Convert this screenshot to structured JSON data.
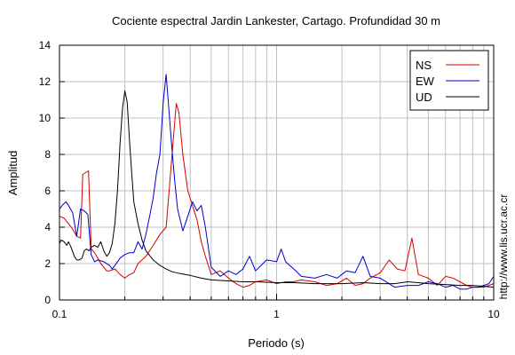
{
  "chart_data": {
    "type": "line",
    "title": "Cociente espectral Jardin Lankester, Cartago. Profundidad 30 m",
    "xlabel": "Periodo (s)",
    "ylabel": "Amplitud",
    "xscale": "log",
    "xlim": [
      0.1,
      10
    ],
    "ylim": [
      0,
      14
    ],
    "x_ticks": [
      0.1,
      1,
      10
    ],
    "x_tick_labels": [
      "0.1",
      "1",
      "10"
    ],
    "y_ticks": [
      0,
      2,
      4,
      6,
      8,
      10,
      12,
      14
    ],
    "y_tick_labels": [
      "0",
      "2",
      "4",
      "6",
      "8",
      "10",
      "12",
      "14"
    ],
    "grid": true,
    "legend_position": "top-right",
    "side_text": "http://www.lis.ucr.ac.cr",
    "series": [
      {
        "name": "NS",
        "color": "#d40000",
        "points": [
          [
            0.1,
            4.6
          ],
          [
            0.105,
            4.5
          ],
          [
            0.11,
            4.2
          ],
          [
            0.115,
            3.9
          ],
          [
            0.12,
            3.5
          ],
          [
            0.125,
            3.4
          ],
          [
            0.128,
            6.9
          ],
          [
            0.132,
            7.0
          ],
          [
            0.136,
            7.1
          ],
          [
            0.14,
            2.8
          ],
          [
            0.145,
            2.6
          ],
          [
            0.15,
            2.3
          ],
          [
            0.155,
            2.0
          ],
          [
            0.16,
            1.8
          ],
          [
            0.165,
            1.6
          ],
          [
            0.17,
            1.6
          ],
          [
            0.18,
            1.7
          ],
          [
            0.19,
            1.4
          ],
          [
            0.2,
            1.2
          ],
          [
            0.21,
            1.4
          ],
          [
            0.22,
            1.5
          ],
          [
            0.23,
            2.0
          ],
          [
            0.25,
            2.4
          ],
          [
            0.27,
            3.0
          ],
          [
            0.29,
            3.6
          ],
          [
            0.31,
            4.0
          ],
          [
            0.33,
            8.0
          ],
          [
            0.345,
            10.8
          ],
          [
            0.355,
            10.3
          ],
          [
            0.37,
            8.0
          ],
          [
            0.39,
            6.0
          ],
          [
            0.41,
            5.2
          ],
          [
            0.43,
            4.4
          ],
          [
            0.45,
            3.2
          ],
          [
            0.47,
            2.4
          ],
          [
            0.5,
            1.4
          ],
          [
            0.55,
            1.6
          ],
          [
            0.6,
            1.2
          ],
          [
            0.65,
            0.9
          ],
          [
            0.7,
            0.7
          ],
          [
            0.75,
            0.8
          ],
          [
            0.8,
            1.0
          ],
          [
            0.9,
            1.1
          ],
          [
            1.0,
            0.9
          ],
          [
            1.1,
            1.0
          ],
          [
            1.2,
            1.0
          ],
          [
            1.3,
            1.1
          ],
          [
            1.5,
            1.0
          ],
          [
            1.7,
            0.8
          ],
          [
            1.9,
            0.9
          ],
          [
            2.1,
            1.2
          ],
          [
            2.3,
            0.8
          ],
          [
            2.5,
            0.9
          ],
          [
            2.7,
            1.2
          ],
          [
            3.0,
            1.5
          ],
          [
            3.3,
            2.2
          ],
          [
            3.6,
            1.7
          ],
          [
            3.9,
            1.6
          ],
          [
            4.2,
            3.4
          ],
          [
            4.5,
            1.4
          ],
          [
            5.0,
            1.2
          ],
          [
            5.5,
            0.8
          ],
          [
            6.0,
            1.3
          ],
          [
            6.5,
            1.2
          ],
          [
            7.0,
            1.0
          ],
          [
            7.5,
            0.8
          ],
          [
            8.0,
            0.7
          ],
          [
            8.5,
            0.7
          ],
          [
            9.0,
            0.7
          ],
          [
            9.5,
            0.8
          ],
          [
            10.0,
            0.9
          ]
        ]
      },
      {
        "name": "EW",
        "color": "#0000c8",
        "points": [
          [
            0.1,
            5.0
          ],
          [
            0.103,
            5.2
          ],
          [
            0.107,
            5.4
          ],
          [
            0.11,
            5.2
          ],
          [
            0.115,
            4.8
          ],
          [
            0.12,
            3.5
          ],
          [
            0.125,
            5.0
          ],
          [
            0.13,
            4.9
          ],
          [
            0.135,
            4.7
          ],
          [
            0.14,
            2.5
          ],
          [
            0.145,
            2.1
          ],
          [
            0.15,
            2.2
          ],
          [
            0.16,
            2.1
          ],
          [
            0.17,
            1.9
          ],
          [
            0.175,
            1.7
          ],
          [
            0.18,
            1.9
          ],
          [
            0.19,
            2.3
          ],
          [
            0.2,
            2.5
          ],
          [
            0.21,
            2.6
          ],
          [
            0.22,
            2.6
          ],
          [
            0.23,
            3.2
          ],
          [
            0.24,
            2.8
          ],
          [
            0.25,
            3.6
          ],
          [
            0.26,
            4.6
          ],
          [
            0.27,
            5.6
          ],
          [
            0.28,
            7.0
          ],
          [
            0.29,
            8.0
          ],
          [
            0.3,
            10.8
          ],
          [
            0.31,
            12.4
          ],
          [
            0.32,
            10.3
          ],
          [
            0.33,
            8.2
          ],
          [
            0.34,
            6.5
          ],
          [
            0.35,
            5.0
          ],
          [
            0.37,
            3.8
          ],
          [
            0.39,
            4.6
          ],
          [
            0.41,
            5.4
          ],
          [
            0.43,
            4.9
          ],
          [
            0.45,
            5.2
          ],
          [
            0.47,
            4.0
          ],
          [
            0.5,
            1.8
          ],
          [
            0.55,
            1.3
          ],
          [
            0.6,
            1.6
          ],
          [
            0.65,
            1.4
          ],
          [
            0.7,
            1.7
          ],
          [
            0.75,
            2.4
          ],
          [
            0.8,
            1.6
          ],
          [
            0.9,
            2.2
          ],
          [
            1.0,
            2.1
          ],
          [
            1.05,
            2.8
          ],
          [
            1.1,
            2.1
          ],
          [
            1.2,
            1.7
          ],
          [
            1.3,
            1.3
          ],
          [
            1.5,
            1.2
          ],
          [
            1.7,
            1.4
          ],
          [
            1.9,
            1.2
          ],
          [
            2.1,
            1.6
          ],
          [
            2.3,
            1.5
          ],
          [
            2.5,
            2.4
          ],
          [
            2.7,
            1.3
          ],
          [
            3.0,
            1.2
          ],
          [
            3.5,
            0.7
          ],
          [
            4.0,
            0.8
          ],
          [
            4.5,
            0.8
          ],
          [
            5.0,
            1.0
          ],
          [
            5.5,
            0.9
          ],
          [
            6.0,
            0.7
          ],
          [
            6.5,
            0.8
          ],
          [
            7.0,
            0.6
          ],
          [
            7.5,
            0.6
          ],
          [
            8.0,
            0.7
          ],
          [
            8.5,
            0.7
          ],
          [
            9.0,
            0.8
          ],
          [
            9.5,
            0.9
          ],
          [
            10.0,
            1.3
          ]
        ]
      },
      {
        "name": "UD",
        "color": "#000000",
        "points": [
          [
            0.1,
            3.1
          ],
          [
            0.102,
            3.3
          ],
          [
            0.105,
            3.2
          ],
          [
            0.108,
            3.0
          ],
          [
            0.11,
            3.2
          ],
          [
            0.113,
            2.9
          ],
          [
            0.117,
            2.4
          ],
          [
            0.12,
            2.2
          ],
          [
            0.123,
            2.2
          ],
          [
            0.127,
            2.3
          ],
          [
            0.13,
            2.7
          ],
          [
            0.133,
            2.8
          ],
          [
            0.137,
            2.7
          ],
          [
            0.14,
            2.9
          ],
          [
            0.145,
            3.0
          ],
          [
            0.15,
            2.9
          ],
          [
            0.155,
            3.2
          ],
          [
            0.16,
            2.7
          ],
          [
            0.165,
            2.4
          ],
          [
            0.17,
            2.6
          ],
          [
            0.175,
            3.1
          ],
          [
            0.18,
            4.2
          ],
          [
            0.185,
            6.0
          ],
          [
            0.19,
            8.6
          ],
          [
            0.195,
            10.5
          ],
          [
            0.2,
            11.5
          ],
          [
            0.205,
            10.9
          ],
          [
            0.21,
            8.8
          ],
          [
            0.215,
            7.0
          ],
          [
            0.22,
            5.4
          ],
          [
            0.23,
            4.2
          ],
          [
            0.24,
            3.3
          ],
          [
            0.25,
            2.7
          ],
          [
            0.27,
            2.2
          ],
          [
            0.29,
            1.9
          ],
          [
            0.31,
            1.7
          ],
          [
            0.33,
            1.55
          ],
          [
            0.36,
            1.45
          ],
          [
            0.4,
            1.35
          ],
          [
            0.45,
            1.2
          ],
          [
            0.5,
            1.1
          ],
          [
            0.6,
            1.05
          ],
          [
            0.7,
            1.0
          ],
          [
            0.8,
            1.0
          ],
          [
            1.0,
            0.95
          ],
          [
            1.2,
            0.95
          ],
          [
            1.5,
            0.9
          ],
          [
            2.0,
            0.9
          ],
          [
            2.5,
            0.95
          ],
          [
            3.0,
            0.9
          ],
          [
            3.5,
            0.9
          ],
          [
            4.0,
            1.0
          ],
          [
            4.5,
            0.95
          ],
          [
            5.0,
            0.9
          ],
          [
            6.0,
            0.85
          ],
          [
            7.0,
            0.8
          ],
          [
            8.0,
            0.8
          ],
          [
            9.0,
            0.75
          ],
          [
            10.0,
            0.7
          ]
        ]
      }
    ]
  }
}
